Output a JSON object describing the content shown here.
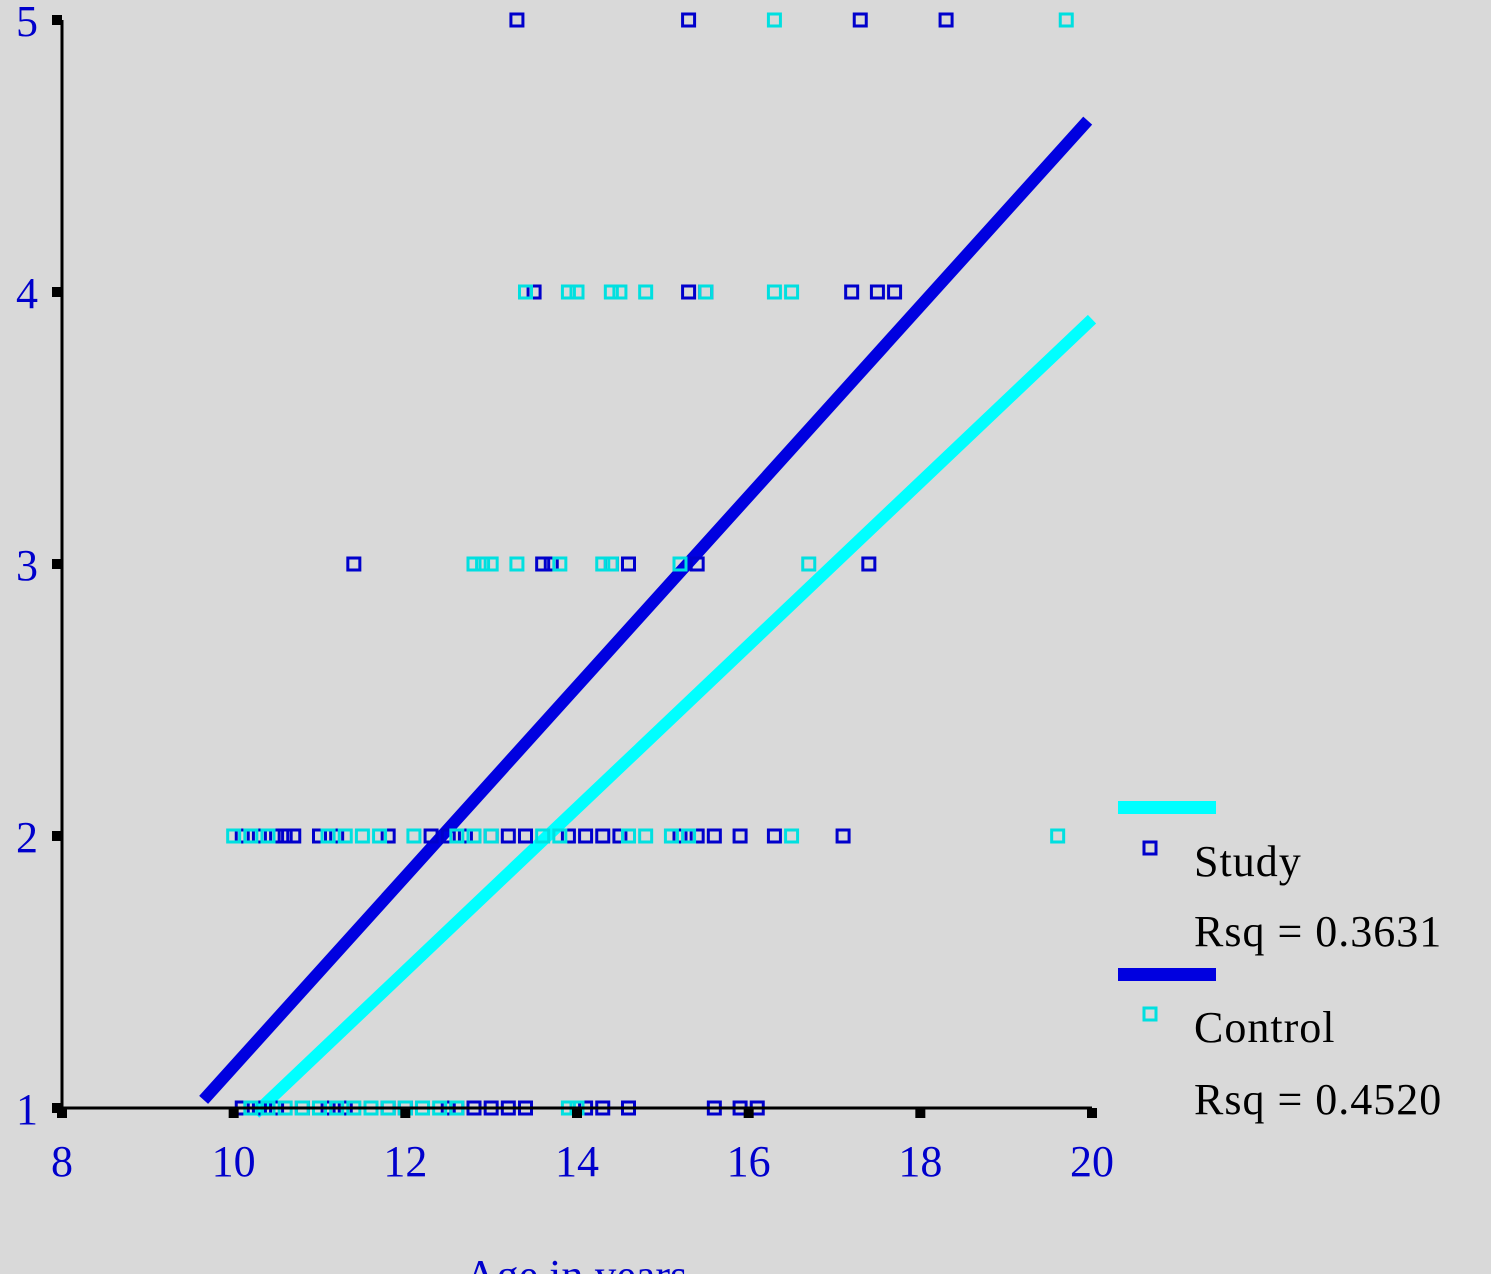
{
  "chart_data": {
    "type": "scatter",
    "title": "",
    "xlabel": "Age in years",
    "ylabel": "",
    "xlim": [
      8,
      20
    ],
    "ylim": [
      1,
      5
    ],
    "x_ticks": [
      "8",
      "10",
      "12",
      "14",
      "16",
      "18",
      "20"
    ],
    "y_ticks": [
      "1",
      "2",
      "3",
      "4",
      "5"
    ],
    "grid": false,
    "legend_position": "right",
    "series": [
      {
        "name": "Study",
        "color": "#0000cc",
        "marker": "hollow-square",
        "fit_label": "Rsq = 0.3631",
        "fit_color": "#0000e0",
        "fit_line": [
          [
            9.65,
            1.03
          ],
          [
            19.95,
            4.63
          ]
        ],
        "points": [
          [
            13.3,
            5
          ],
          [
            15.3,
            5
          ],
          [
            17.3,
            5
          ],
          [
            18.3,
            5
          ],
          [
            13.5,
            4
          ],
          [
            15.3,
            4
          ],
          [
            15.5,
            4
          ],
          [
            17.2,
            4
          ],
          [
            17.5,
            4
          ],
          [
            17.7,
            4
          ],
          [
            11.4,
            3
          ],
          [
            13.6,
            3
          ],
          [
            13.7,
            3
          ],
          [
            14.4,
            3
          ],
          [
            14.6,
            3
          ],
          [
            15.4,
            3
          ],
          [
            17.4,
            3
          ],
          [
            10.1,
            2
          ],
          [
            10.3,
            2
          ],
          [
            10.5,
            2
          ],
          [
            10.6,
            2
          ],
          [
            10.7,
            2
          ],
          [
            11.0,
            2
          ],
          [
            11.2,
            2
          ],
          [
            11.8,
            2
          ],
          [
            12.3,
            2
          ],
          [
            12.5,
            2
          ],
          [
            12.7,
            2
          ],
          [
            13.0,
            2
          ],
          [
            13.2,
            2
          ],
          [
            13.4,
            2
          ],
          [
            13.9,
            2
          ],
          [
            14.1,
            2
          ],
          [
            14.3,
            2
          ],
          [
            14.5,
            2
          ],
          [
            15.2,
            2
          ],
          [
            15.4,
            2
          ],
          [
            15.6,
            2
          ],
          [
            15.9,
            2
          ],
          [
            16.3,
            2
          ],
          [
            17.1,
            2
          ],
          [
            10.1,
            1
          ],
          [
            10.3,
            1
          ],
          [
            10.5,
            1
          ],
          [
            10.8,
            1
          ],
          [
            11.1,
            1
          ],
          [
            11.3,
            1
          ],
          [
            11.8,
            1
          ],
          [
            12.0,
            1
          ],
          [
            12.2,
            1
          ],
          [
            12.5,
            1
          ],
          [
            12.6,
            1
          ],
          [
            12.8,
            1
          ],
          [
            13.0,
            1
          ],
          [
            13.2,
            1
          ],
          [
            13.4,
            1
          ],
          [
            14.1,
            1
          ],
          [
            14.3,
            1
          ],
          [
            14.6,
            1
          ],
          [
            15.6,
            1
          ],
          [
            15.9,
            1
          ],
          [
            16.1,
            1
          ]
        ]
      },
      {
        "name": "Control",
        "color": "#00e0e0",
        "marker": "hollow-square",
        "fit_label": "Rsq = 0.4520",
        "fit_color": "#00ffff",
        "fit_line": [
          [
            10.25,
            0.98
          ],
          [
            20.0,
            3.9
          ]
        ],
        "points": [
          [
            16.3,
            5
          ],
          [
            19.7,
            5
          ],
          [
            13.4,
            4
          ],
          [
            13.9,
            4
          ],
          [
            14.0,
            4
          ],
          [
            14.4,
            4
          ],
          [
            14.5,
            4
          ],
          [
            14.8,
            4
          ],
          [
            15.5,
            4
          ],
          [
            16.3,
            4
          ],
          [
            16.5,
            4
          ],
          [
            12.8,
            3
          ],
          [
            12.9,
            3
          ],
          [
            13.0,
            3
          ],
          [
            13.3,
            3
          ],
          [
            13.8,
            3
          ],
          [
            14.3,
            3
          ],
          [
            14.4,
            3
          ],
          [
            15.2,
            3
          ],
          [
            16.7,
            3
          ],
          [
            10.0,
            2
          ],
          [
            10.2,
            2
          ],
          [
            10.4,
            2
          ],
          [
            11.1,
            2
          ],
          [
            11.3,
            2
          ],
          [
            11.5,
            2
          ],
          [
            11.7,
            2
          ],
          [
            12.1,
            2
          ],
          [
            12.6,
            2
          ],
          [
            12.8,
            2
          ],
          [
            13.0,
            2
          ],
          [
            13.6,
            2
          ],
          [
            13.8,
            2
          ],
          [
            14.6,
            2
          ],
          [
            14.8,
            2
          ],
          [
            15.1,
            2
          ],
          [
            15.3,
            2
          ],
          [
            16.5,
            2
          ],
          [
            19.6,
            2
          ],
          [
            10.2,
            1
          ],
          [
            10.4,
            1
          ],
          [
            10.6,
            1
          ],
          [
            10.8,
            1
          ],
          [
            11.0,
            1
          ],
          [
            11.2,
            1
          ],
          [
            11.4,
            1
          ],
          [
            11.6,
            1
          ],
          [
            11.8,
            1
          ],
          [
            12.0,
            1
          ],
          [
            12.2,
            1
          ],
          [
            12.4,
            1
          ],
          [
            12.6,
            1
          ],
          [
            13.9,
            1
          ],
          [
            14.0,
            1
          ]
        ]
      }
    ]
  }
}
